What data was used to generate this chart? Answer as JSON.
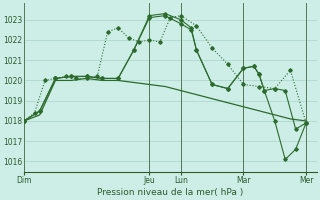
{
  "bg_color": "#cceee6",
  "grid_color": "#aad4ca",
  "line_color": "#2d6a2d",
  "dot_color": "#2d6a2d",
  "text_color": "#2d5a2d",
  "xlabel": "Pression niveau de la mer( hPa )",
  "ylim": [
    1015.5,
    1023.8
  ],
  "yticks": [
    1016,
    1017,
    1018,
    1019,
    1020,
    1021,
    1022,
    1023
  ],
  "day_labels": [
    "Dim",
    "Jeu",
    "Lun",
    "Mar",
    "Mer"
  ],
  "day_positions": [
    0,
    48,
    60,
    84,
    108
  ],
  "xlim": [
    0,
    112
  ],
  "vline_color": "#557755",
  "series1_x": [
    0,
    6,
    12,
    18,
    24,
    30,
    36,
    42,
    48,
    54,
    60,
    66,
    72,
    78,
    84,
    90,
    96,
    102,
    108
  ],
  "series1_y": [
    1018.0,
    1018.3,
    1020.0,
    1020.0,
    1020.1,
    1020.0,
    1020.0,
    1019.9,
    1019.8,
    1019.7,
    1019.5,
    1019.3,
    1019.1,
    1018.9,
    1018.7,
    1018.5,
    1018.3,
    1018.1,
    1018.0
  ],
  "series2_x": [
    0,
    4,
    8,
    12,
    16,
    20,
    24,
    28,
    32,
    36,
    40,
    44,
    48,
    52,
    56,
    60,
    66,
    72,
    78,
    84,
    90,
    96,
    102,
    108
  ],
  "series2_y": [
    1018.0,
    1018.4,
    1020.0,
    1020.1,
    1020.2,
    1020.1,
    1020.1,
    1020.2,
    1022.4,
    1022.6,
    1022.1,
    1021.9,
    1022.0,
    1021.9,
    1023.1,
    1023.2,
    1022.7,
    1021.6,
    1020.8,
    1019.8,
    1019.7,
    1019.6,
    1020.5,
    1017.9
  ],
  "series3_x": [
    0,
    6,
    12,
    18,
    24,
    30,
    36,
    42,
    48,
    54,
    60,
    64,
    66,
    72,
    78,
    84,
    88,
    90,
    92,
    96,
    100,
    104,
    108
  ],
  "series3_y": [
    1018.0,
    1018.5,
    1020.1,
    1020.2,
    1020.2,
    1020.1,
    1020.1,
    1021.5,
    1023.1,
    1023.2,
    1022.8,
    1022.5,
    1021.5,
    1019.8,
    1019.6,
    1020.6,
    1020.7,
    1020.3,
    1019.5,
    1019.6,
    1019.5,
    1017.6,
    1017.9
  ],
  "series4_x": [
    0,
    6,
    12,
    18,
    24,
    30,
    36,
    42,
    48,
    54,
    60,
    64,
    66,
    72,
    78,
    84,
    88,
    90,
    92,
    96,
    100,
    104,
    108
  ],
  "series4_y": [
    1018.0,
    1018.5,
    1020.1,
    1020.2,
    1020.2,
    1020.1,
    1020.1,
    1021.5,
    1023.2,
    1023.3,
    1023.0,
    1022.6,
    1021.5,
    1019.8,
    1019.6,
    1020.6,
    1020.7,
    1020.3,
    1019.5,
    1018.0,
    1016.1,
    1016.6,
    1017.9
  ]
}
